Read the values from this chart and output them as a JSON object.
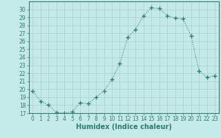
{
  "x": [
    0,
    1,
    2,
    3,
    4,
    5,
    6,
    7,
    8,
    9,
    10,
    11,
    12,
    13,
    14,
    15,
    16,
    17,
    18,
    19,
    20,
    21,
    22,
    23
  ],
  "y": [
    19.8,
    18.5,
    18.0,
    17.1,
    17.0,
    17.2,
    18.3,
    18.2,
    19.0,
    19.8,
    21.2,
    23.2,
    26.5,
    27.5,
    29.2,
    30.2,
    30.1,
    29.2,
    28.9,
    28.8,
    26.7,
    22.3,
    21.5,
    21.7
  ],
  "line_color": "#2d7d6e",
  "marker": "+",
  "marker_size": 4,
  "marker_linewidth": 1.0,
  "bg_color": "#c5e8e8",
  "grid_color": "#aacfcf",
  "xlabel": "Humidex (Indice chaleur)",
  "xlim": [
    -0.5,
    23.5
  ],
  "ylim": [
    17,
    31
  ],
  "yticks": [
    17,
    18,
    19,
    20,
    21,
    22,
    23,
    24,
    25,
    26,
    27,
    28,
    29,
    30
  ],
  "xticks": [
    0,
    1,
    2,
    3,
    4,
    5,
    6,
    7,
    8,
    9,
    10,
    11,
    12,
    13,
    14,
    15,
    16,
    17,
    18,
    19,
    20,
    21,
    22,
    23
  ],
  "tick_color": "#2d7d6e",
  "font_color": "#2d7d6e",
  "xlabel_fontsize": 7,
  "tick_fontsize": 5.5,
  "linewidth": 0.8,
  "linestyle": ":"
}
